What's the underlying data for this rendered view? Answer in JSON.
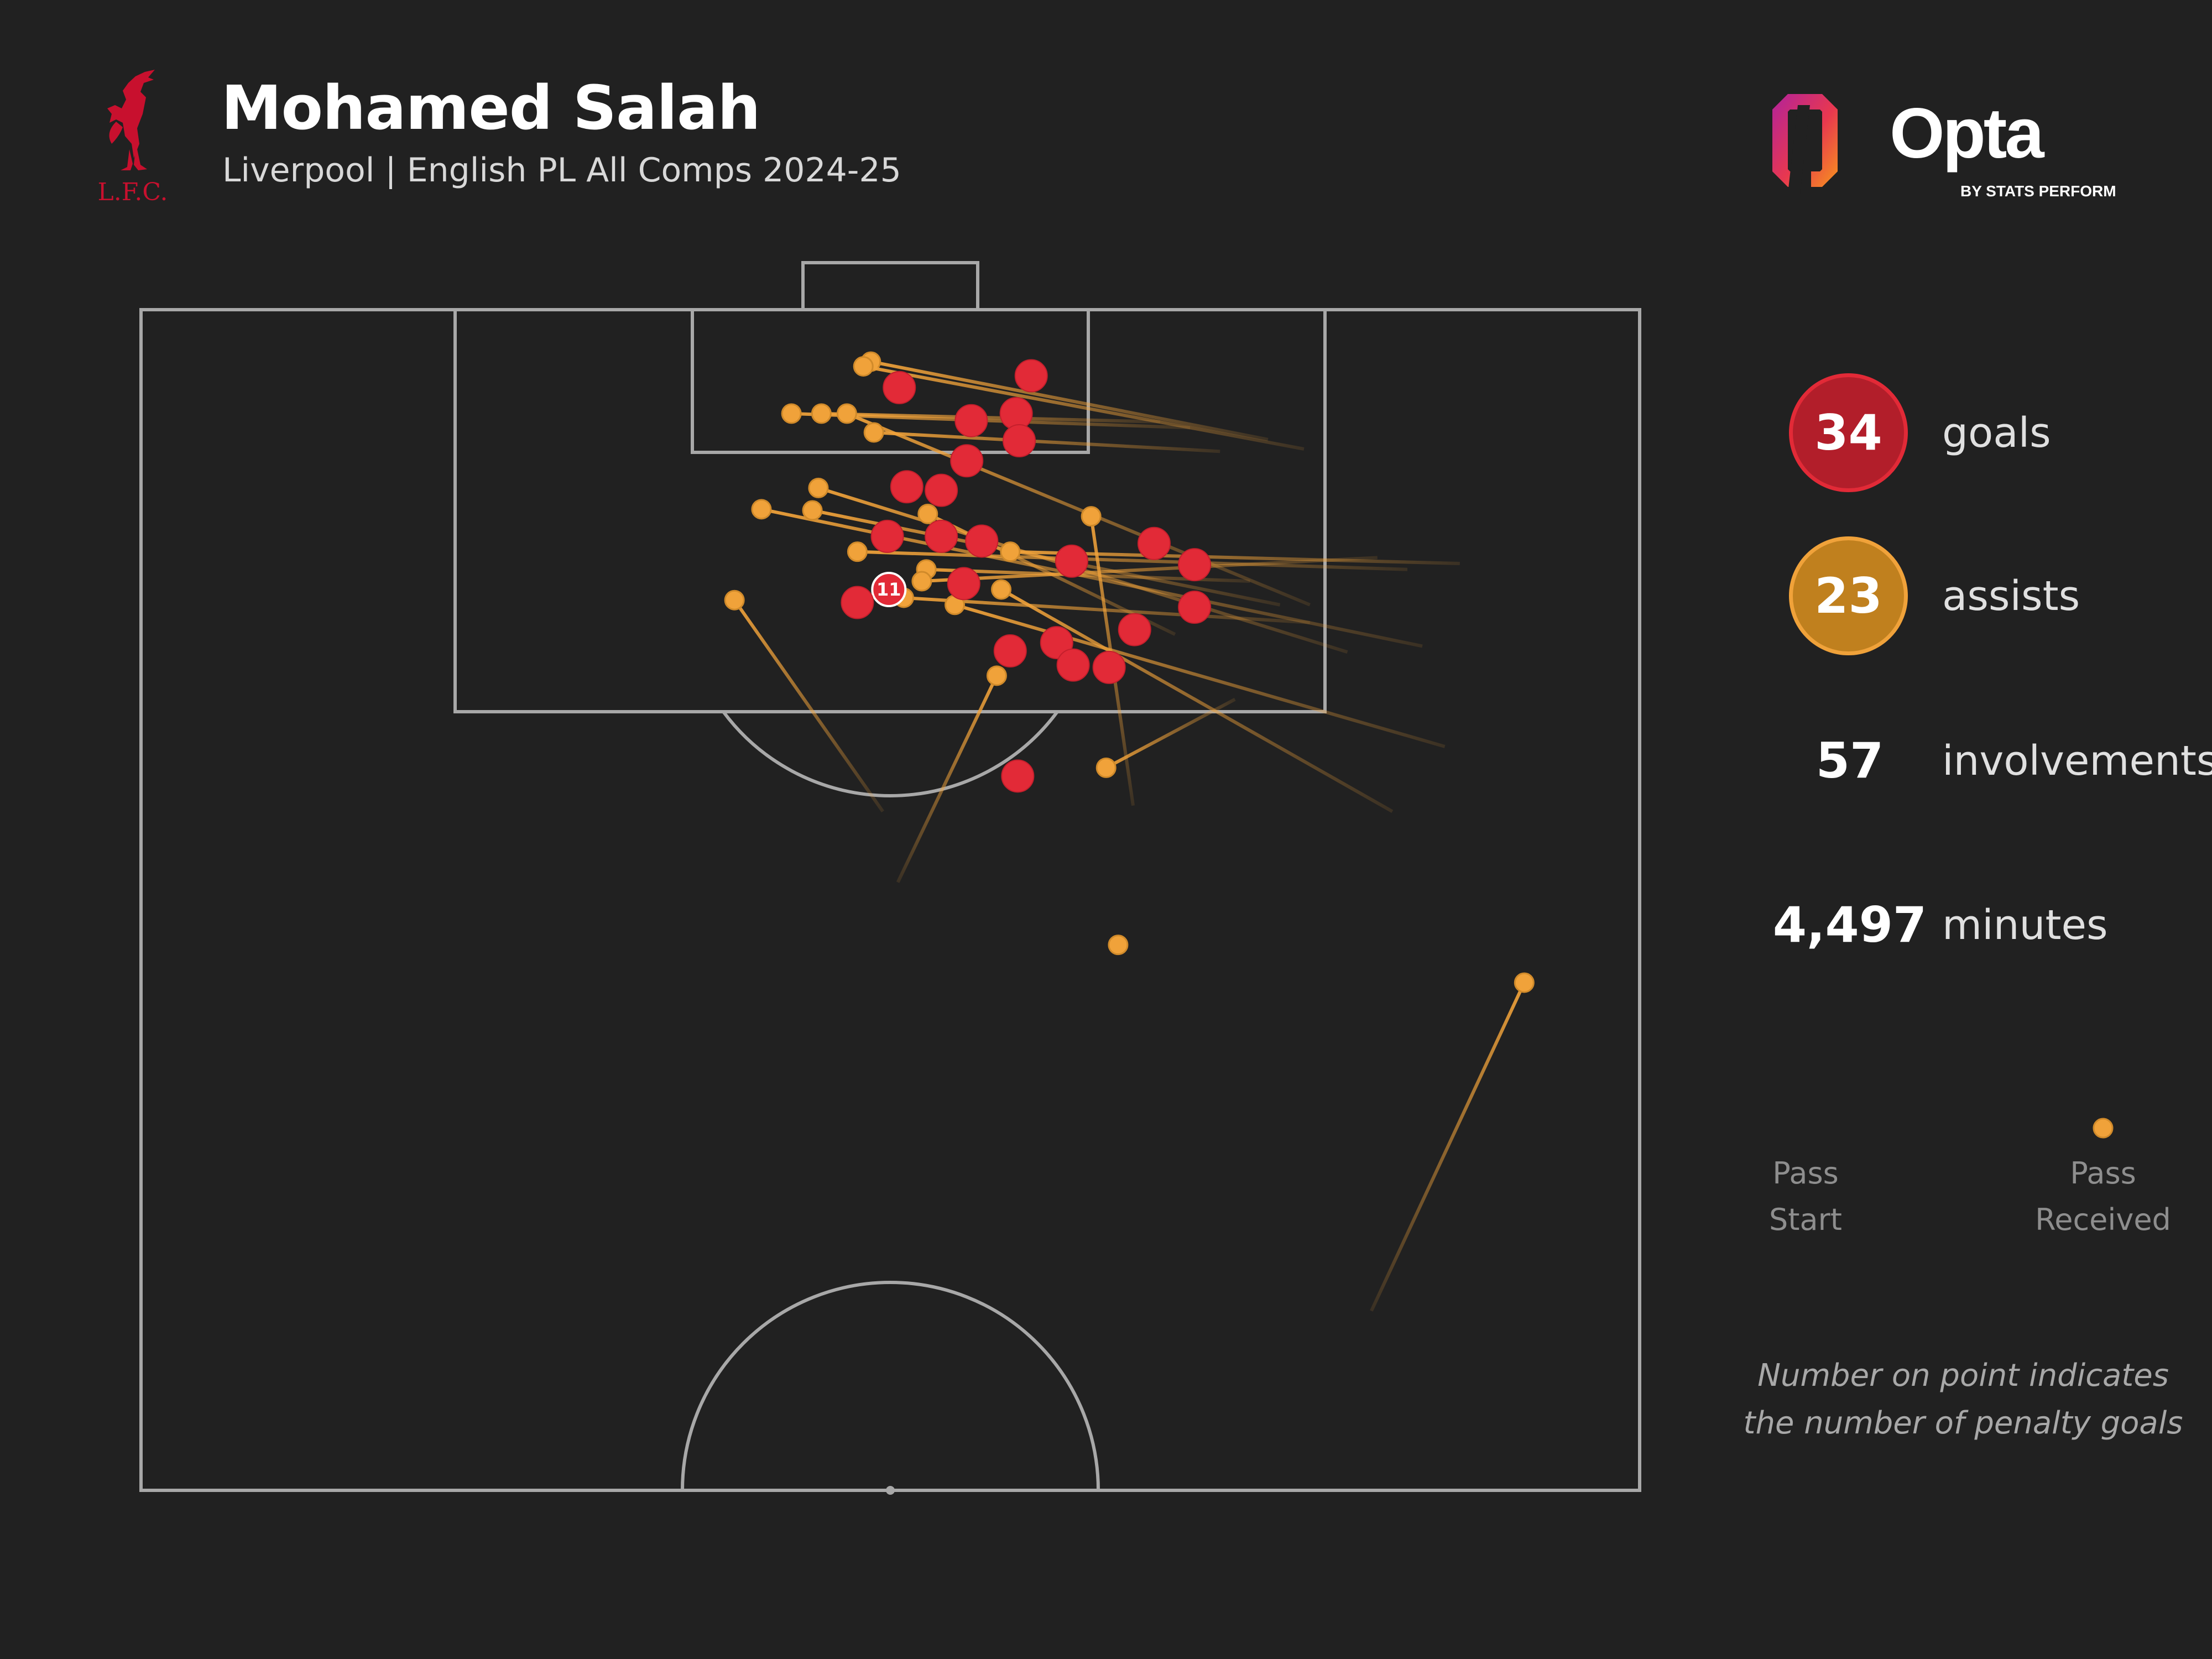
{
  "header": {
    "title": "Mohamed Salah",
    "subtitle": "Liverpool | English PL All Comps 2024-25",
    "club_crest_text": "L.F.C."
  },
  "brand": {
    "name": "Opta",
    "tagline": "BY STATS PERFORM"
  },
  "stats": {
    "goals": {
      "value": "34",
      "label": "goals"
    },
    "assists": {
      "value": "23",
      "label": "assists"
    },
    "involvements": {
      "value": "57",
      "label": "involvements"
    },
    "minutes": {
      "value": "4,497",
      "label": "minutes"
    }
  },
  "legend": {
    "start_label_1": "Pass",
    "start_label_2": "Start",
    "end_label_1": "Pass",
    "end_label_2": "Received"
  },
  "note": {
    "line1": "Number on point indicates",
    "line2": "the number of penalty goals"
  },
  "colors": {
    "background": "#212121",
    "goal": "#e22a37",
    "assist": "#f0a23a",
    "pitch_lines": "#a8a8a8"
  },
  "chart_data": {
    "type": "scatter",
    "description_units": "pitch coordinates (x across pitch, 0 = left touchline to 100 = right touchline; y = 0 at goal line to 100 at halfway line)",
    "goals": [
      {
        "x": 50.6,
        "y": 6.6
      },
      {
        "x": 59.4,
        "y": 5.6
      },
      {
        "x": 55.4,
        "y": 9.4
      },
      {
        "x": 58.4,
        "y": 8.8
      },
      {
        "x": 58.6,
        "y": 11.1
      },
      {
        "x": 55.1,
        "y": 12.8
      },
      {
        "x": 51.1,
        "y": 15.0
      },
      {
        "x": 53.4,
        "y": 15.3
      },
      {
        "x": 49.8,
        "y": 19.2
      },
      {
        "x": 53.4,
        "y": 19.2
      },
      {
        "x": 56.1,
        "y": 19.6
      },
      {
        "x": 49.9,
        "y": 23.7,
        "penalties": 11
      },
      {
        "x": 47.8,
        "y": 24.8
      },
      {
        "x": 54.9,
        "y": 23.2
      },
      {
        "x": 62.1,
        "y": 21.3
      },
      {
        "x": 67.6,
        "y": 19.8
      },
      {
        "x": 70.3,
        "y": 21.6
      },
      {
        "x": 70.3,
        "y": 25.2
      },
      {
        "x": 66.3,
        "y": 27.1
      },
      {
        "x": 61.1,
        "y": 28.2
      },
      {
        "x": 58.0,
        "y": 28.9
      },
      {
        "x": 62.2,
        "y": 30.1
      },
      {
        "x": 64.6,
        "y": 30.3
      },
      {
        "x": 58.5,
        "y": 39.5
      }
    ],
    "assists": [
      {
        "start": {
          "x": 75.2,
          "y": 11.0
        },
        "received": {
          "x": 48.7,
          "y": 4.4
        }
      },
      {
        "start": {
          "x": 77.6,
          "y": 11.8
        },
        "received": {
          "x": 48.2,
          "y": 4.8
        }
      },
      {
        "start": {
          "x": 70.0,
          "y": 10.0
        },
        "received": {
          "x": 43.4,
          "y": 8.8
        }
      },
      {
        "start": {
          "x": 68.0,
          "y": 9.5
        },
        "received": {
          "x": 45.4,
          "y": 8.8
        }
      },
      {
        "start": {
          "x": 78.0,
          "y": 25.0
        },
        "received": {
          "x": 47.1,
          "y": 8.8
        }
      },
      {
        "start": {
          "x": 72.0,
          "y": 12.0
        },
        "received": {
          "x": 48.9,
          "y": 10.4
        }
      },
      {
        "start": {
          "x": 80.5,
          "y": 29.0
        },
        "received": {
          "x": 45.2,
          "y": 15.1
        }
      },
      {
        "start": {
          "x": 85.5,
          "y": 28.5
        },
        "received": {
          "x": 41.4,
          "y": 16.9
        }
      },
      {
        "start": {
          "x": 76.0,
          "y": 25.0
        },
        "received": {
          "x": 44.8,
          "y": 17.0
        }
      },
      {
        "start": {
          "x": 69.0,
          "y": 27.5
        },
        "received": {
          "x": 52.5,
          "y": 17.3
        }
      },
      {
        "start": {
          "x": 84.5,
          "y": 22.0
        },
        "received": {
          "x": 47.8,
          "y": 20.5
        }
      },
      {
        "start": {
          "x": 88.0,
          "y": 21.5
        },
        "received": {
          "x": 58.0,
          "y": 20.5
        }
      },
      {
        "start": {
          "x": 74.0,
          "y": 23.0
        },
        "received": {
          "x": 52.4,
          "y": 22.0
        }
      },
      {
        "start": {
          "x": 82.5,
          "y": 21.0
        },
        "received": {
          "x": 52.1,
          "y": 23.0
        }
      },
      {
        "start": {
          "x": 78.0,
          "y": 26.5
        },
        "received": {
          "x": 50.9,
          "y": 24.4
        }
      },
      {
        "start": {
          "x": 87.0,
          "y": 37.0
        },
        "received": {
          "x": 54.3,
          "y": 25.0
        }
      },
      {
        "start": {
          "x": 66.2,
          "y": 42.0
        },
        "received": {
          "x": 63.4,
          "y": 17.5
        }
      },
      {
        "start": {
          "x": 83.5,
          "y": 42.5
        },
        "received": {
          "x": 57.4,
          "y": 23.7
        }
      },
      {
        "start": {
          "x": 49.5,
          "y": 42.5
        },
        "received": {
          "x": 39.6,
          "y": 24.6
        }
      },
      {
        "start": {
          "x": 50.5,
          "y": 48.5
        },
        "received": {
          "x": 57.1,
          "y": 31.0
        }
      },
      {
        "start": {
          "x": 73.0,
          "y": 33.0
        },
        "received": {
          "x": 64.4,
          "y": 38.8
        }
      },
      {
        "start": null,
        "received": {
          "x": 65.2,
          "y": 53.8
        }
      },
      {
        "start": {
          "x": 82.1,
          "y": 84.8
        },
        "received": {
          "x": 92.3,
          "y": 57.0
        }
      }
    ]
  }
}
